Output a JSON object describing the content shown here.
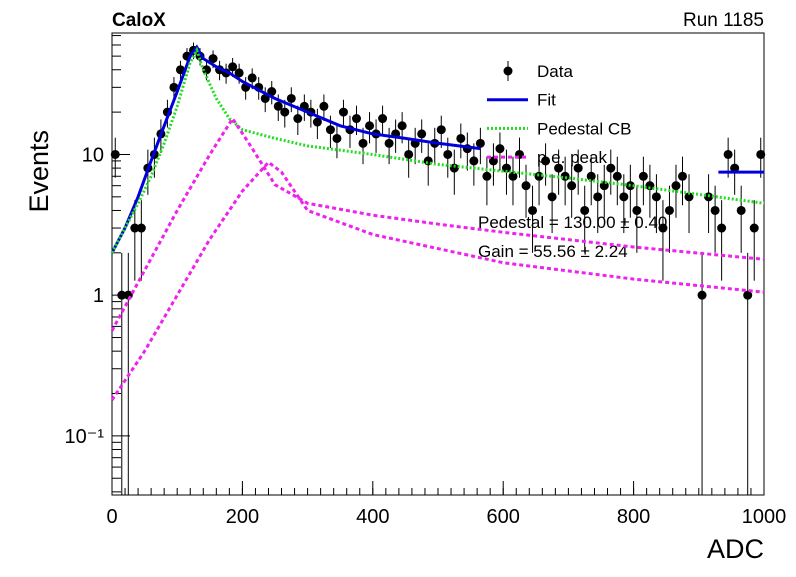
{
  "chart_data": {
    "type": "histogram",
    "title": "CaloX",
    "subtitle": "Run 1185",
    "x_label": "ADC",
    "y_label": "Events",
    "xlim": [
      0,
      1000
    ],
    "xticks": [
      0,
      200,
      400,
      600,
      800,
      1000
    ],
    "ylim": [
      0.038,
      73
    ],
    "yticks": [
      {
        "value": 0.1,
        "label": "10⁻¹"
      },
      1,
      10
    ],
    "log_y": true,
    "legend": "upper right",
    "annotations": [
      "Pedestal = 130.00 ± 0.40",
      "Gain = 55.56 ± 2.24"
    ],
    "series": [
      {
        "name": "Data",
        "type": "points",
        "color": "#000000",
        "x": [
          5,
          15,
          25,
          35,
          45,
          55,
          65,
          75,
          85,
          95,
          105,
          115,
          125,
          135,
          145,
          155,
          165,
          175,
          185,
          195,
          205,
          215,
          225,
          235,
          245,
          255,
          265,
          275,
          285,
          295,
          305,
          315,
          325,
          335,
          345,
          355,
          365,
          375,
          385,
          395,
          405,
          415,
          425,
          435,
          445,
          455,
          465,
          475,
          485,
          495,
          505,
          515,
          525,
          535,
          545,
          555,
          565,
          575,
          585,
          595,
          605,
          615,
          625,
          635,
          645,
          655,
          665,
          675,
          685,
          695,
          705,
          715,
          725,
          735,
          745,
          755,
          765,
          775,
          785,
          795,
          805,
          815,
          825,
          835,
          845,
          855,
          865,
          875,
          885,
          895,
          905,
          915,
          925,
          935,
          945,
          955,
          965,
          975,
          985,
          995
        ],
        "values": [
          10,
          1,
          1,
          3,
          3,
          8,
          10,
          14,
          20,
          30,
          40,
          50,
          55,
          50,
          40,
          48,
          40,
          38,
          42,
          38,
          30,
          35,
          30,
          25,
          28,
          22,
          20,
          25,
          18,
          22,
          20,
          17,
          22,
          15,
          13,
          20,
          15,
          18,
          12,
          16,
          14,
          18,
          12,
          14,
          16,
          10,
          12,
          14,
          9,
          12,
          15,
          10,
          8,
          13,
          11,
          9,
          12,
          7,
          9,
          11,
          8,
          7,
          10,
          6,
          4,
          7,
          9,
          5,
          8,
          7,
          6,
          8,
          4,
          7,
          5,
          6,
          8,
          7,
          5,
          6,
          4,
          7,
          6,
          5,
          3,
          4,
          6,
          7,
          5,
          null,
          1,
          5,
          4,
          3,
          10,
          8,
          4,
          1,
          3,
          10
        ]
      },
      {
        "name": "Fit",
        "type": "line",
        "style": "solid",
        "color": "#0000dd",
        "x": [
          0,
          20,
          40,
          60,
          80,
          100,
          120,
          130,
          140,
          160,
          180,
          200,
          250,
          300,
          350,
          400,
          450,
          500,
          565,
          null,
          930,
          1000
        ],
        "values": [
          2,
          3,
          5,
          9,
          16,
          28,
          50,
          58,
          48,
          42,
          38,
          33,
          25,
          20,
          16,
          14,
          13,
          12,
          11,
          null,
          7.5,
          7.5
        ]
      },
      {
        "name": "Pedestal CB",
        "type": "line",
        "style": "dotted",
        "color": "#22dd22",
        "x": [
          0,
          20,
          40,
          60,
          80,
          100,
          120,
          130,
          140,
          160,
          180,
          200,
          250,
          300,
          400,
          500,
          600,
          700,
          800,
          900,
          1000
        ],
        "values": [
          2,
          3,
          4.5,
          7,
          12,
          22,
          45,
          55,
          40,
          25,
          18,
          15,
          13,
          11.5,
          10,
          8.5,
          7.6,
          6.8,
          6,
          5.2,
          4.5
        ]
      },
      {
        "name": "p.e. peak",
        "type": "line",
        "style": "dashed",
        "color": "#ee22ee",
        "x": [
          0,
          50,
          100,
          150,
          185,
          210,
          250,
          300,
          400,
          500,
          600,
          800,
          1000,
          null,
          0,
          50,
          100,
          150,
          200,
          240,
          260,
          300,
          400,
          600,
          800,
          1000
        ],
        "values": [
          0.56,
          1.5,
          4,
          10,
          18,
          12,
          6.1,
          4.5,
          3.7,
          3.2,
          2.8,
          2.2,
          1.8,
          null,
          0.18,
          0.4,
          1,
          2.5,
          5.5,
          8.8,
          7.5,
          4,
          2.7,
          1.7,
          1.3,
          1.05
        ]
      }
    ]
  }
}
